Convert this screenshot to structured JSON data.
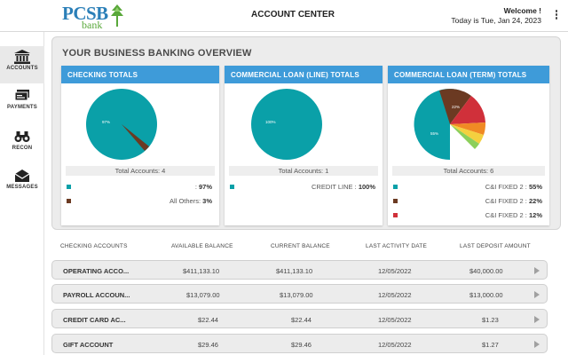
{
  "header": {
    "logo_text": "PCSB",
    "logo_sub": "bank",
    "title": "ACCOUNT CENTER",
    "welcome": "Welcome !",
    "date_line": "Today is Tue, Jan 24, 2023",
    "menu_icon": "kebab-menu-icon"
  },
  "sidebar": {
    "items": [
      {
        "label": "ACCOUNTS",
        "icon": "bank-icon",
        "active": true
      },
      {
        "label": "PAYMENTS",
        "icon": "payments-icon",
        "active": false
      },
      {
        "label": "RECON",
        "icon": "binoculars-icon",
        "active": false
      },
      {
        "label": "MESSAGES",
        "icon": "envelope-icon",
        "active": false
      }
    ]
  },
  "overview": {
    "title": "YOUR BUSINESS BANKING OVERVIEW",
    "cards": [
      {
        "title": "CHECKING TOTALS",
        "totals": "Total Accounts: 4",
        "pie_label": "97%",
        "legend": [
          {
            "name": "",
            "value": "97%",
            "color": "#0aa0a8"
          },
          {
            "name": "All Others:",
            "value": "3%",
            "color": "#6b3a22"
          }
        ]
      },
      {
        "title": "COMMERCIAL LOAN (LINE) TOTALS",
        "totals": "Total Accounts: 1",
        "pie_label": "100%",
        "legend": [
          {
            "name": "CREDIT LINE :",
            "value": "100%",
            "color": "#0aa0a8"
          }
        ]
      },
      {
        "title": "COMMERCIAL LOAN (TERM) TOTALS",
        "totals": "Total Accounts: 6",
        "pie_label_main": "55%",
        "pie_label_second": "22%",
        "legend": [
          {
            "name": "C&I FIXED 2 :",
            "value": "55%",
            "color": "#0aa0a8"
          },
          {
            "name": "C&I FIXED 2 :",
            "value": "22%",
            "color": "#6b3a22"
          },
          {
            "name": "C&I FIXED 2 :",
            "value": "12%",
            "color": "#d0303a"
          }
        ]
      }
    ]
  },
  "accounts_table": {
    "headers": [
      "CHECKING ACCOUNTS",
      "AVAILABLE BALANCE",
      "CURRENT BALANCE",
      "LAST ACTIVITY DATE",
      "LAST DEPOSIT AMOUNT"
    ],
    "rows": [
      {
        "name": "OPERATING ACCO...",
        "available": "$411,133.10",
        "current": "$411,133.10",
        "last_activity": "12/05/2022",
        "last_deposit": "$40,000.00"
      },
      {
        "name": "PAYROLL ACCOUN...",
        "available": "$13,079.00",
        "current": "$13,079.00",
        "last_activity": "12/05/2022",
        "last_deposit": "$13,000.00"
      },
      {
        "name": "CREDIT CARD AC...",
        "available": "$22.44",
        "current": "$22.44",
        "last_activity": "12/05/2022",
        "last_deposit": "$1.23"
      },
      {
        "name": "GIFT ACCOUNT",
        "available": "$29.46",
        "current": "$29.46",
        "last_activity": "12/05/2022",
        "last_deposit": "$1.27"
      }
    ]
  }
}
